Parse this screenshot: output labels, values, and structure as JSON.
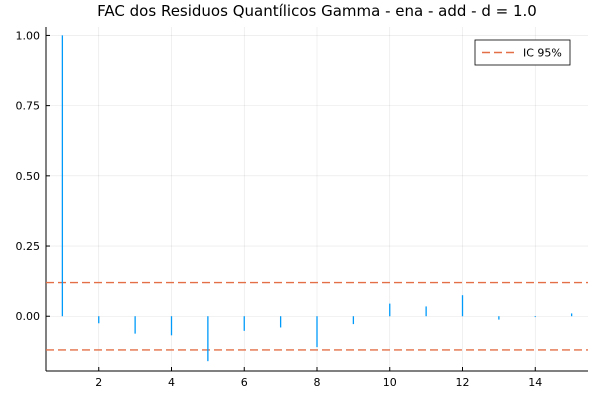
{
  "chart_data": {
    "type": "bar",
    "title": "FAC dos Residuos Quantílicos Gamma - ena - add - d = 1.0",
    "xlabel": "",
    "ylabel": "",
    "x": [
      1,
      2,
      3,
      4,
      5,
      6,
      7,
      8,
      9,
      10,
      11,
      12,
      13,
      14,
      15
    ],
    "values": [
      1.0,
      -0.025,
      -0.062,
      -0.068,
      -0.16,
      -0.052,
      -0.04,
      -0.11,
      -0.028,
      0.045,
      0.035,
      0.075,
      -0.012,
      -0.003,
      0.01
    ],
    "xlim": [
      0.55,
      15.45
    ],
    "ylim": [
      -0.195,
      1.03
    ],
    "xticks": [
      2,
      4,
      6,
      8,
      10,
      12,
      14
    ],
    "yticks": [
      0.0,
      0.25,
      0.5,
      0.75,
      1.0
    ],
    "xtick_labels": [
      "2",
      "4",
      "6",
      "8",
      "10",
      "12",
      "14"
    ],
    "ytick_labels": [
      "0.00",
      "0.25",
      "0.50",
      "0.75",
      "1.00"
    ],
    "confidence_interval": {
      "name": "IC 95%",
      "upper": 0.12,
      "lower": -0.12
    },
    "grid": true,
    "legend_position": "top-right",
    "colors": {
      "bars": "#009AFA",
      "ci": "#E26F46"
    }
  }
}
